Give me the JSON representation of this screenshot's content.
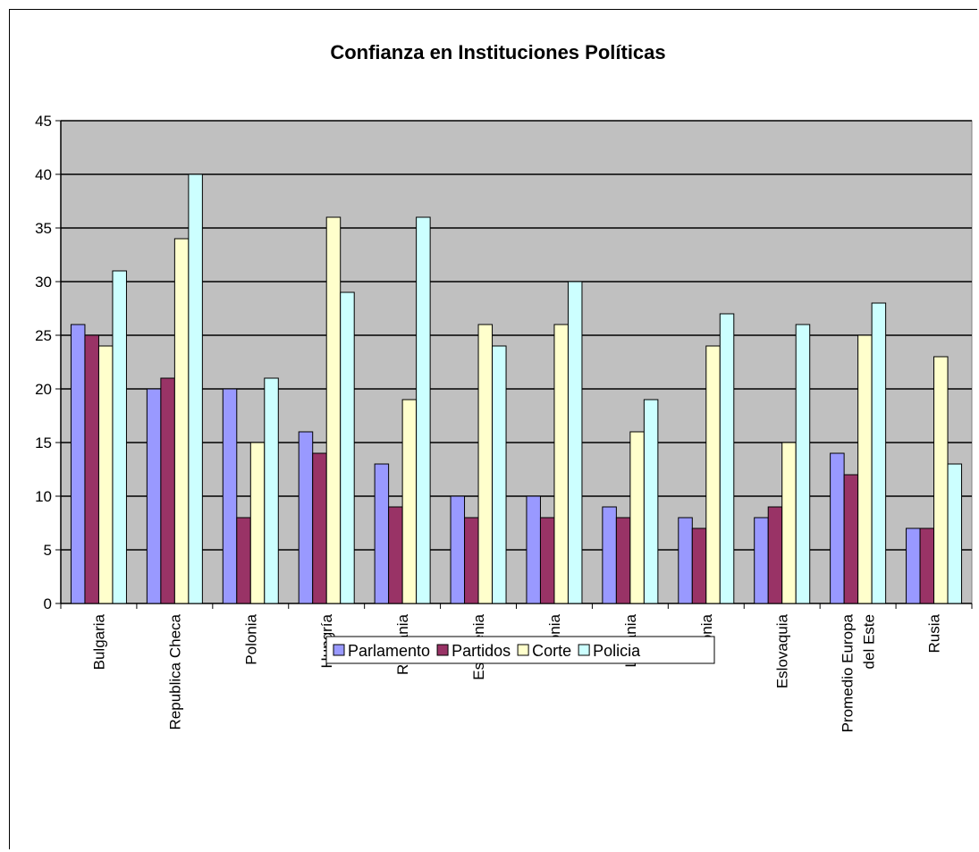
{
  "chart_data": {
    "type": "bar",
    "title": "Confianza en Instituciones Políticas",
    "xlabel": "",
    "ylabel": "",
    "ylim": [
      0,
      45
    ],
    "ytick_step": 5,
    "grid": true,
    "legend_position": "bottom",
    "plot_background": "#c0c0c0",
    "categories": [
      [
        "Bulgaria"
      ],
      [
        "Republica Checa"
      ],
      [
        "Polonia"
      ],
      [
        "Hungría"
      ],
      [
        "Rumania"
      ],
      [
        "Eslovenia"
      ],
      [
        "Estonia"
      ],
      [
        "Lituania"
      ],
      [
        "Letonia"
      ],
      [
        "Eslovaquia"
      ],
      [
        "Promedio Europa",
        "del Este"
      ],
      [
        "Rusia"
      ]
    ],
    "series": [
      {
        "name": "Parlamento",
        "color": "#9999ff",
        "values": [
          26,
          20,
          20,
          16,
          13,
          10,
          10,
          9,
          8,
          8,
          14,
          7
        ]
      },
      {
        "name": "Partidos",
        "color": "#993366",
        "values": [
          25,
          21,
          8,
          14,
          9,
          8,
          8,
          8,
          7,
          9,
          12,
          7
        ]
      },
      {
        "name": "Corte",
        "color": "#ffffcc",
        "values": [
          24,
          34,
          15,
          36,
          19,
          26,
          26,
          16,
          24,
          15,
          25,
          23
        ]
      },
      {
        "name": "Policia",
        "color": "#ccffff",
        "values": [
          31,
          40,
          21,
          29,
          36,
          24,
          30,
          19,
          27,
          26,
          28,
          13
        ]
      }
    ]
  }
}
